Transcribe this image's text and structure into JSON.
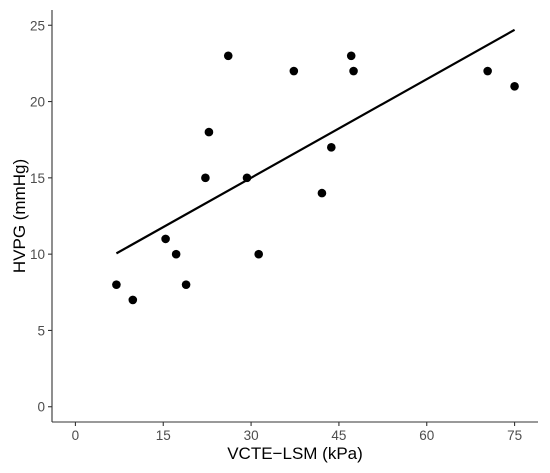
{
  "chart_data": {
    "type": "scatter",
    "title": "",
    "xlabel": "VCTE−LSM (kPa)",
    "ylabel": "HVPG (mmHg)",
    "xlim": [
      -4,
      79
    ],
    "ylim": [
      -1,
      26
    ],
    "xticks": [
      0,
      15,
      30,
      45,
      60,
      75
    ],
    "yticks": [
      0,
      5,
      10,
      15,
      20,
      25
    ],
    "grid": false,
    "legend": "none",
    "point_color": "#000000",
    "line_color": "#000000",
    "points": [
      {
        "x": 7.0,
        "y": 8
      },
      {
        "x": 9.8,
        "y": 7
      },
      {
        "x": 15.4,
        "y": 11
      },
      {
        "x": 17.2,
        "y": 10
      },
      {
        "x": 18.9,
        "y": 8
      },
      {
        "x": 22.2,
        "y": 15
      },
      {
        "x": 22.8,
        "y": 18
      },
      {
        "x": 26.1,
        "y": 23
      },
      {
        "x": 29.3,
        "y": 15
      },
      {
        "x": 31.3,
        "y": 10
      },
      {
        "x": 37.3,
        "y": 22
      },
      {
        "x": 42.1,
        "y": 14
      },
      {
        "x": 43.7,
        "y": 17
      },
      {
        "x": 47.1,
        "y": 23
      },
      {
        "x": 47.5,
        "y": 22
      },
      {
        "x": 70.4,
        "y": 22
      },
      {
        "x": 75.0,
        "y": 21
      }
    ],
    "trendline": {
      "x": [
        7.0,
        75.0
      ],
      "y": [
        10.05,
        24.7
      ]
    }
  }
}
